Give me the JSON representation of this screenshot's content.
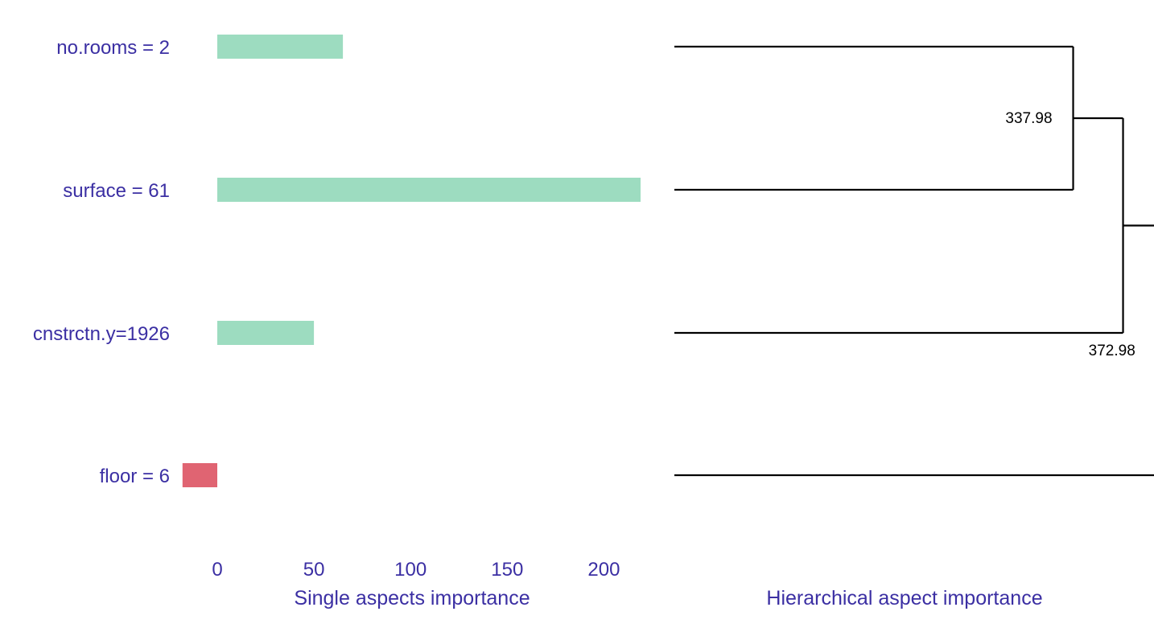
{
  "chart_data": [
    {
      "type": "bar",
      "orientation": "horizontal",
      "categories": [
        "no.rooms = 2",
        "surface = 61",
        "cnstrctn.y=1926",
        "floor = 6"
      ],
      "values": [
        65,
        219,
        50,
        -18
      ],
      "xlabel": "Single aspects importance",
      "ylabel": "",
      "xticks": [
        0,
        50,
        100,
        150,
        200
      ],
      "xlim": [
        -18,
        219
      ],
      "positive_color": "#9ddcc0",
      "negative_color": "#e06472",
      "grid": false
    },
    {
      "type": "dendrogram",
      "leaves": [
        "no.rooms = 2",
        "surface = 61",
        "cnstrctn.y=1926",
        "floor = 6"
      ],
      "merges": [
        {
          "children": [
            0,
            1
          ],
          "height": 337.98,
          "label": "337.98"
        },
        {
          "children": [
            "m0",
            2
          ],
          "height": 359.0
        },
        {
          "children": [
            "m1",
            3
          ],
          "height": 372.98,
          "label": "372.98"
        }
      ],
      "xlabel": "Hierarchical aspect importance",
      "line_color": "#000000"
    }
  ]
}
